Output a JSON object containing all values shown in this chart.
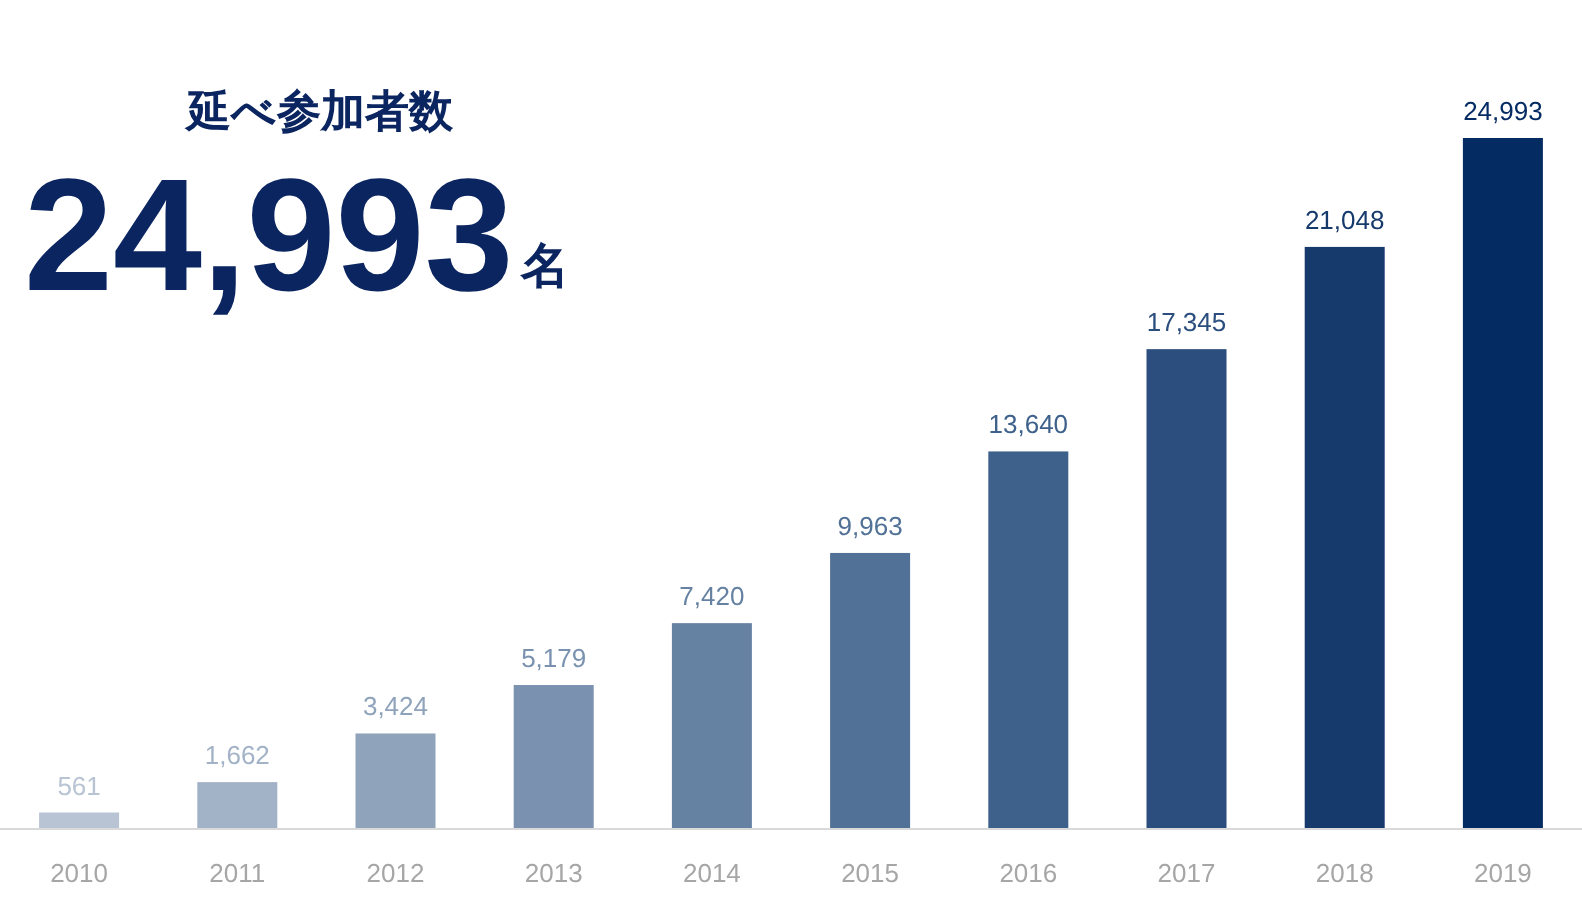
{
  "chart_data": {
    "type": "bar",
    "title": "延べ参加者数",
    "subtitle": "24,993",
    "annotations": [
      "名"
    ],
    "categories": [
      "2010",
      "2011",
      "2012",
      "2013",
      "2014",
      "2015",
      "2016",
      "2017",
      "2018",
      "2019"
    ],
    "values": [
      561,
      1662,
      3424,
      5179,
      7420,
      9963,
      13640,
      17345,
      21048,
      24993
    ],
    "colors": [
      "#b8c4d4",
      "#a3b3c7",
      "#8fa3bb",
      "#7a92b0",
      "#6682a3",
      "#517197",
      "#3d618b",
      "#2b4e7e",
      "#173a6d",
      "#042c63"
    ],
    "value_labels": [
      "561",
      "1,662",
      "3,424",
      "5,179",
      "7,420",
      "9,963",
      "13,640",
      "17,345",
      "21,048",
      "24,993"
    ]
  }
}
